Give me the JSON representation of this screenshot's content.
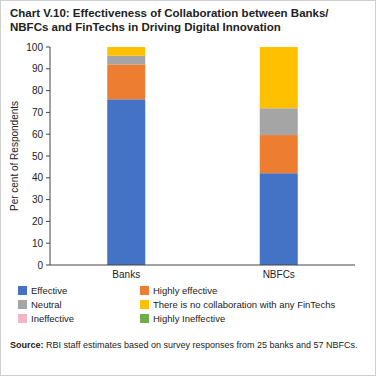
{
  "chart_data": {
    "type": "bar",
    "title": "Chart V.10: Effectiveness of Collaboration between Banks/ NBFCs and FinTechs in Driving Digital Innovation",
    "y_label": "Per cent of Respondents",
    "source": "Source: RBI staff estimates based on survey responses from 25 banks and 57 NBFCs.",
    "categories": [
      "Banks",
      "NBFCs"
    ],
    "stacked": true,
    "legend": "bottom",
    "ylim": [
      0,
      100
    ],
    "yticks": [
      0,
      10,
      20,
      30,
      40,
      50,
      60,
      70,
      80,
      90,
      100
    ],
    "series": [
      {
        "name": "Effective",
        "color": "#4472c4",
        "values": [
          76,
          42.1
        ]
      },
      {
        "name": "Highly effective",
        "color": "#ed7d31",
        "values": [
          16,
          17.5
        ]
      },
      {
        "name": "Neutral",
        "color": "#a5a5a5",
        "values": [
          4,
          12.3
        ]
      },
      {
        "name": "There is no collaboration with any FinTechs",
        "color": "#ffc000",
        "values": [
          4,
          28.1
        ]
      },
      {
        "name": "Ineffective",
        "color": "#f4b6c2",
        "values": [
          0,
          0
        ]
      },
      {
        "name": "Highly Ineffective",
        "color": "#70ad47",
        "values": [
          0,
          0
        ]
      }
    ]
  }
}
